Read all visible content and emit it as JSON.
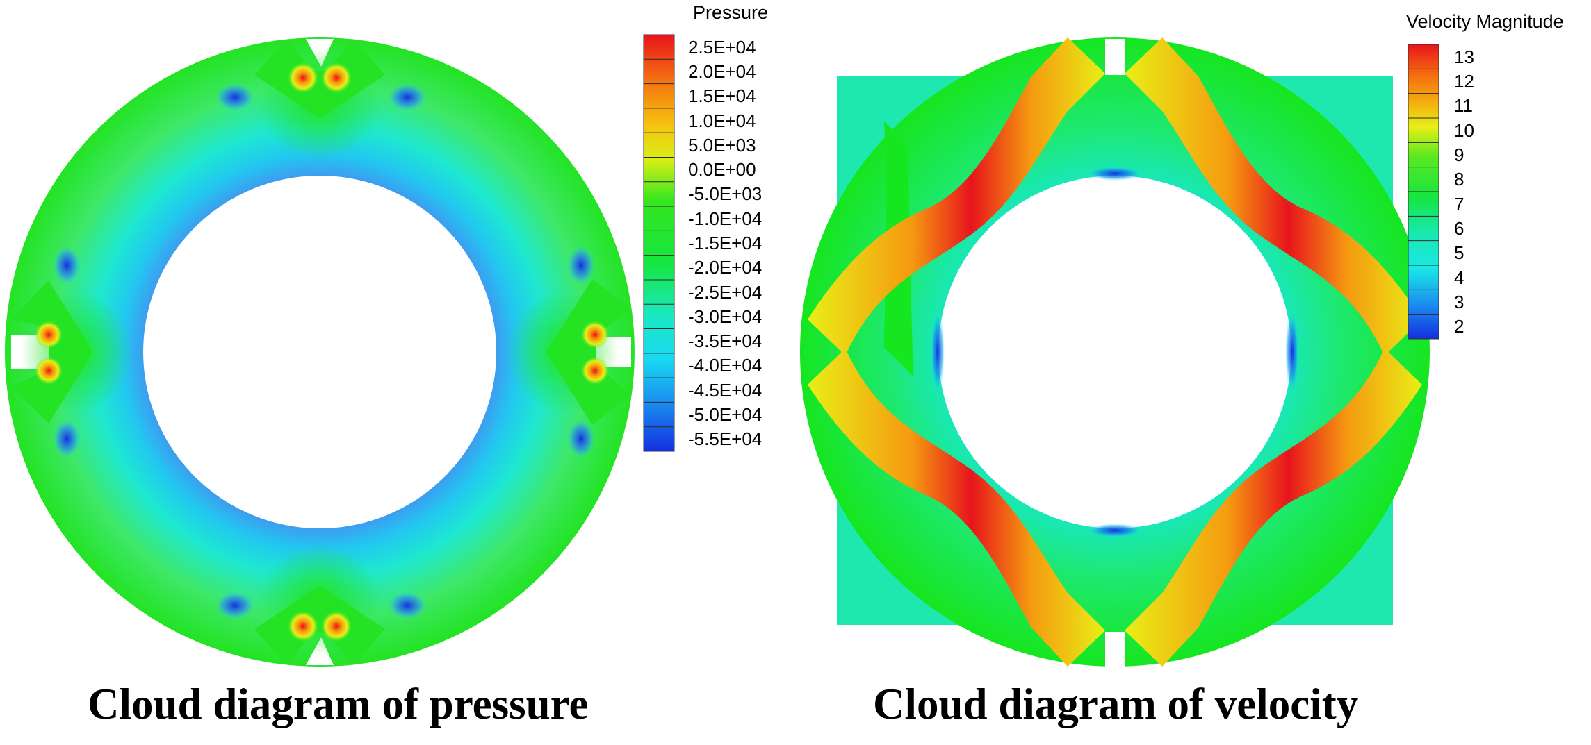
{
  "pressure": {
    "caption": "Cloud diagram of pressure",
    "legend_title": "Pressure",
    "legend_ticks": [
      "2.5E+04",
      "2.0E+04",
      "1.5E+04",
      "1.0E+04",
      "5.0E+03",
      "0.0E+00",
      "-5.0E+03",
      "-1.0E+04",
      "-1.5E+04",
      "-2.0E+04",
      "-2.5E+04",
      "-3.0E+04",
      "-3.5E+04",
      "-4.0E+04",
      "-4.5E+04",
      "-5.0E+04",
      "-5.5E+04"
    ]
  },
  "velocity": {
    "caption": "Cloud diagram of velocity",
    "legend_title": "Velocity Magnitude",
    "legend_ticks": [
      "13",
      "12",
      "11",
      "10",
      "9",
      "8",
      "7",
      "6",
      "5",
      "4",
      "3",
      "2"
    ]
  },
  "colors": {
    "red": "#e8141c",
    "orange": "#f59a10",
    "yellow": "#e8ef16",
    "green": "#16e620",
    "cyan": "#19e8e6",
    "blue": "#1430e0",
    "background": "#ffffff"
  }
}
